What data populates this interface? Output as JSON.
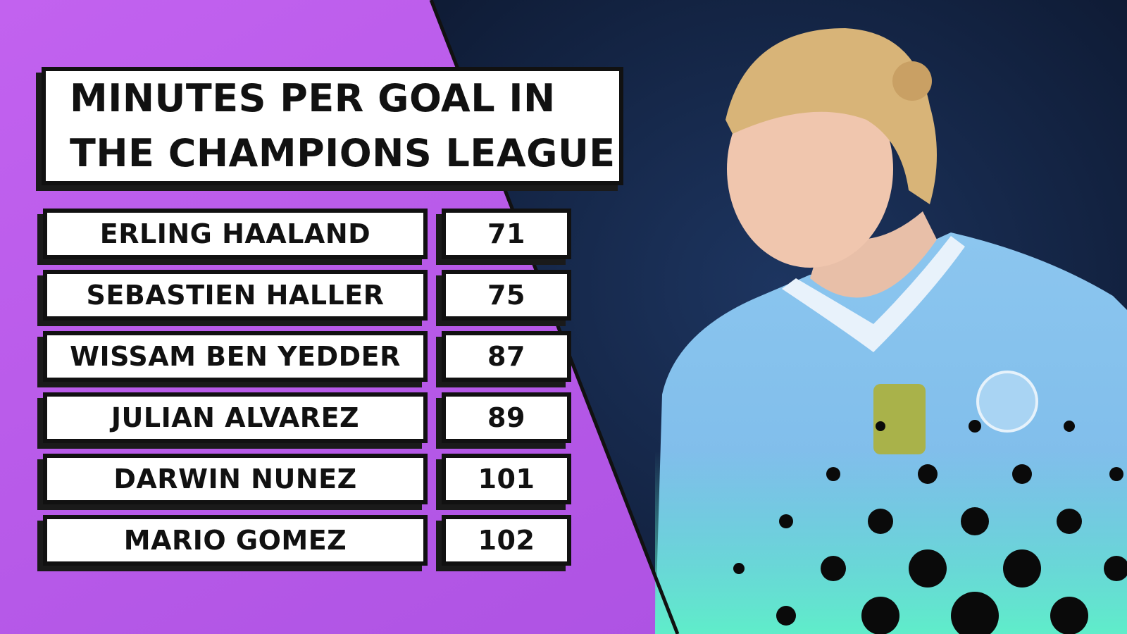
{
  "header": {
    "title_lines": [
      "MINUTES PER GOAL IN",
      "THE CHAMPIONS LEAGUE"
    ]
  },
  "table": {
    "rows": [
      [
        "ERLING HAALAND",
        71
      ],
      [
        "SEBASTIEN HALLER",
        75
      ],
      [
        "WISSAM BEN YEDDER",
        87
      ],
      [
        "JULIAN ALVAREZ",
        89
      ],
      [
        "DARWIN NUNEZ",
        101
      ],
      [
        "MARIO GOMEZ",
        102
      ]
    ]
  }
}
